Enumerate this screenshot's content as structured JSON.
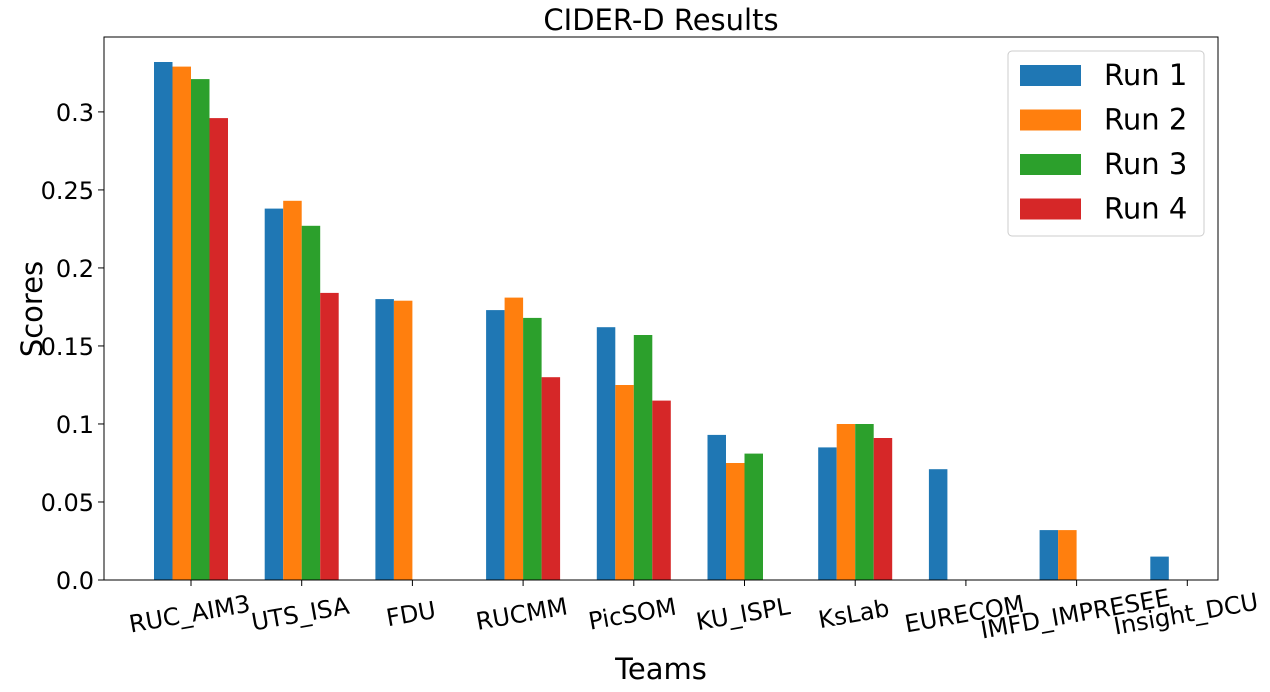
{
  "chart_data": {
    "type": "bar",
    "title": "CIDER-D Results",
    "xlabel": "Teams",
    "ylabel": "Scores",
    "ylim": [
      0,
      0.348
    ],
    "yticks": [
      "0.0",
      "0.05",
      "0.1",
      "0.15",
      "0.2",
      "0.25",
      "0.3"
    ],
    "legend_position": "top-right",
    "grid": false,
    "categories": [
      "RUC_AIM3",
      "UTS_ISA",
      "FDU",
      "RUCMM",
      "PicSOM",
      "KU_ISPL",
      "KsLab",
      "EURECOM",
      "IMFD_IMPRESEE",
      "Insight_DCU"
    ],
    "series": [
      {
        "name": "Run 1",
        "color": "#1f77b4",
        "values": [
          0.332,
          0.238,
          0.18,
          0.173,
          0.162,
          0.093,
          0.085,
          0.071,
          0.032,
          0.015
        ]
      },
      {
        "name": "Run 2",
        "color": "#ff7f0e",
        "values": [
          0.329,
          0.243,
          0.179,
          0.181,
          0.125,
          0.075,
          0.1,
          null,
          0.032,
          null
        ]
      },
      {
        "name": "Run 3",
        "color": "#2ca02c",
        "values": [
          0.321,
          0.227,
          null,
          0.168,
          0.157,
          0.081,
          0.1,
          null,
          null,
          null
        ]
      },
      {
        "name": "Run 4",
        "color": "#d62728",
        "values": [
          0.296,
          0.184,
          null,
          0.13,
          0.115,
          null,
          0.091,
          null,
          null,
          null
        ]
      }
    ]
  }
}
